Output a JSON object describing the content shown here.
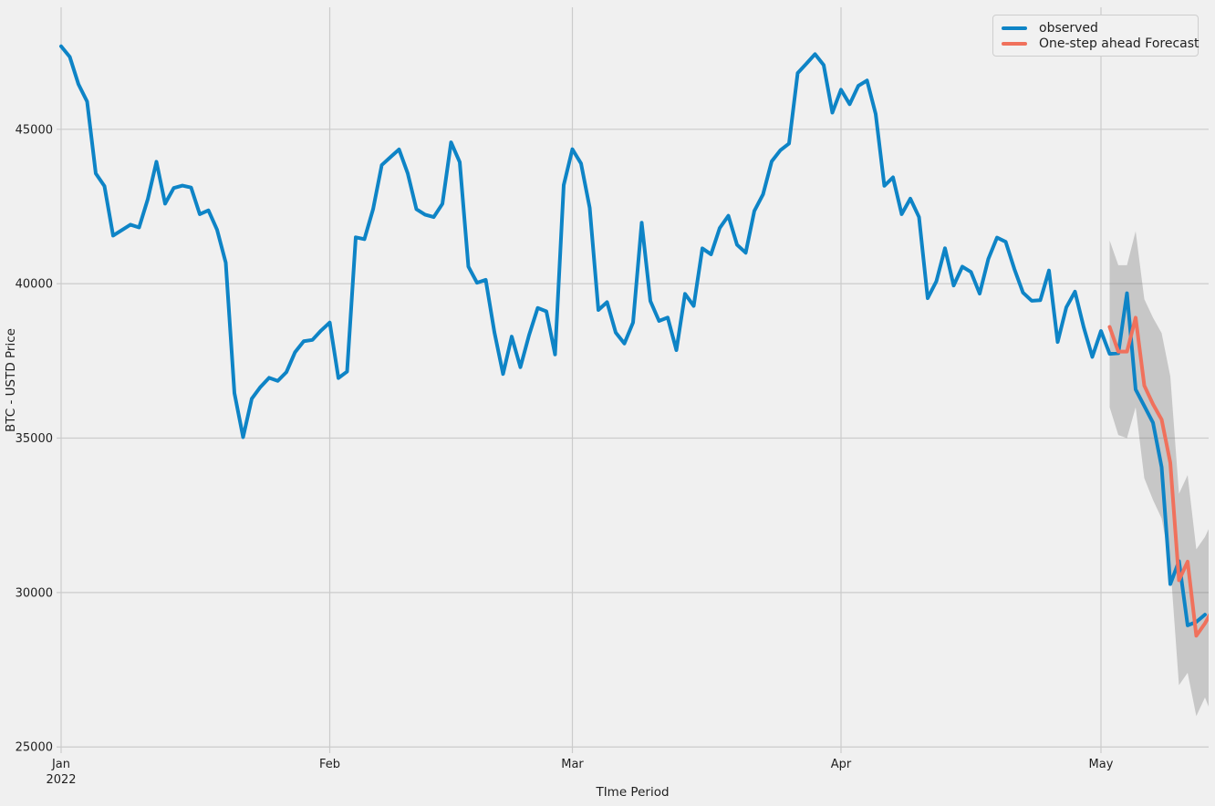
{
  "figure": {
    "xlabel": "TIme Period",
    "ylabel": "BTC - USTD Price",
    "background_color": "#f0f0f0",
    "grid_color": "#cbcbcb",
    "text_color": "#1f1f1f"
  },
  "legend": {
    "position": "upper right",
    "items": [
      {
        "label": "observed",
        "color": "#0e84c6"
      },
      {
        "label": "One-step ahead Forecast",
        "color": "#f0715c"
      }
    ]
  },
  "axes": {
    "y_ticks": [
      25000,
      30000,
      35000,
      40000,
      45000
    ],
    "ylim": [
      24800,
      48950
    ],
    "x_ticks": [
      {
        "label": "Jan",
        "sublabel": "2022",
        "day": 0
      },
      {
        "label": "Feb",
        "sublabel": "",
        "day": 31
      },
      {
        "label": "Mar",
        "sublabel": "",
        "day": 59
      },
      {
        "label": "Apr",
        "sublabel": "",
        "day": 90
      },
      {
        "label": "May",
        "sublabel": "",
        "day": 120
      }
    ]
  },
  "chart_data": {
    "type": "line",
    "title": "",
    "xlabel": "TIme Period",
    "ylabel": "BTC - USTD Price",
    "x_start_date": "2022-01-01",
    "x_end_date": "2022-05-14",
    "grid": true,
    "legend_position": "upper right",
    "series": [
      {
        "name": "observed",
        "color": "#0e84c6",
        "start_day": 0,
        "values": [
          47687,
          47345,
          46458,
          45897,
          43569,
          43160,
          41557,
          41733,
          41911,
          41821,
          42735,
          43949,
          42591,
          43099,
          43177,
          43113,
          42250,
          42375,
          41744,
          40680,
          36457,
          35030,
          36276,
          36654,
          36954,
          36852,
          37138,
          37784,
          38138,
          38180,
          38483,
          38743,
          36945,
          37154,
          41501,
          41441,
          42412,
          43840,
          44096,
          44347,
          43571,
          42412,
          42236,
          42158,
          42586,
          44578,
          43937,
          40552,
          40030,
          40126,
          38431,
          37075,
          38286,
          37296,
          38332,
          39214,
          39105,
          37709,
          43193,
          44354,
          43892,
          42454,
          39148,
          39404,
          38419,
          38062,
          38742,
          41974,
          39439,
          38794,
          38904,
          37849,
          39671,
          39280,
          41143,
          40951,
          41801,
          42201,
          41262,
          41002,
          42358,
          42892,
          43960,
          44320,
          44538,
          46821,
          47122,
          47434,
          47078,
          45539,
          46283,
          45811,
          46407,
          46580,
          45497,
          43170,
          43444,
          42252,
          42753,
          42158,
          39530,
          40074,
          41147,
          39942,
          40551,
          40378,
          39678,
          40801,
          41493,
          41358,
          40480,
          39712,
          39448,
          39466,
          40426,
          38112,
          39235,
          39742,
          38596,
          37630,
          38469,
          37729,
          37748,
          39690,
          36573,
          36040,
          35501,
          34059,
          30273,
          31017,
          28936,
          29047,
          29283
        ]
      },
      {
        "name": "One-step ahead Forecast",
        "color": "#f0715c",
        "start_day": 121,
        "values": [
          38600,
          37800,
          37800,
          38900,
          36700,
          36100,
          35600,
          34200,
          30400,
          31000,
          28600,
          29000,
          29500
        ]
      }
    ],
    "confidence_band": {
      "name": "forecast-confidence-interval",
      "start_day": 121,
      "upper": [
        41400,
        40600,
        40600,
        41700,
        39500,
        38900,
        38400,
        37000,
        33200,
        33800,
        31400,
        31800,
        32400
      ],
      "lower": [
        36000,
        35100,
        35000,
        36000,
        33700,
        33000,
        32400,
        30900,
        27000,
        27400,
        26000,
        26600,
        25900
      ],
      "color": "#737373",
      "opacity": 0.33
    }
  }
}
